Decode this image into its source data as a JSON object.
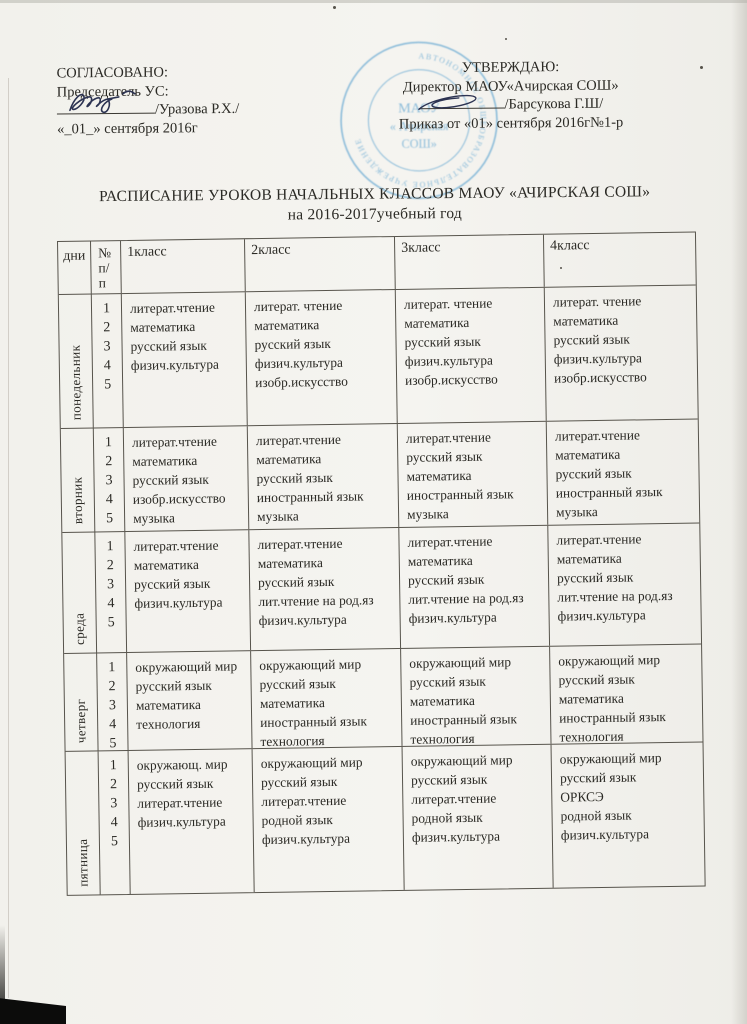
{
  "page": {
    "ink_color": "#2b2a25",
    "stamp_color": "#6fadd4",
    "signature_ink": "#2c3352"
  },
  "approval_left": {
    "heading": "СОГЛАСОВАНО:",
    "role": "Председатель УС:",
    "signature_name": "/Уразова Р.Х./",
    "date": "«_01_» сентября 2016г"
  },
  "approval_right": {
    "heading": "УТВЕРЖДАЮ:",
    "role": "Директор МАОУ«Ачирская СОШ»",
    "signature_name": "/Барсукова Г.Ш/",
    "order": "Приказ от «01» сентября 2016г№1-р"
  },
  "stamp": {
    "ring_text": "АВТОНОМНОЕ ОБЩЕОБРАЗОВАТЕЛЬНОЕ УЧРЕЖДЕНИЕ",
    "line1": "МАОУ",
    "line2": "« Ачирская",
    "line3": "СОШ»"
  },
  "title": {
    "line1": "РАСПИСАНИЕ УРОКОВ НАЧАЛЬНЫХ КЛАССОВ МАОУ «АЧИРСКАЯ СОШ»",
    "line2": "на 2016-2017учебный год"
  },
  "table": {
    "header": {
      "days": "дни",
      "num_lines": [
        "№",
        "п/",
        "п"
      ],
      "classes": [
        "1класс",
        "2класс",
        "3класс",
        "4класс"
      ]
    },
    "rows": [
      {
        "day": "понедельник",
        "periods": [
          "1",
          "2",
          "3",
          "4",
          "5"
        ],
        "classes": [
          [
            "литерат.чтение",
            "математика",
            "русский язык",
            "физич.культура"
          ],
          [
            "литерат. чтение",
            "математика",
            "русский язык",
            "физич.культура",
            "изобр.искусство"
          ],
          [
            "литерат. чтение",
            "математика",
            "русский язык",
            "физич.культура",
            "изобр.искусство"
          ],
          [
            "литерат. чтение",
            "математика",
            "русский язык",
            "физич.культура",
            "изобр.искусство"
          ]
        ]
      },
      {
        "day": "вторник",
        "periods": [
          "1",
          "2",
          "3",
          "4",
          "5"
        ],
        "classes": [
          [
            "литерат.чтение",
            "математика",
            "русский язык",
            "изобр.искусство",
            "музыка"
          ],
          [
            "литерат.чтение",
            "математика",
            "русский язык",
            "иностранный язык",
            "музыка"
          ],
          [
            "литерат.чтение",
            "русский язык",
            "математика",
            "иностранный язык",
            "музыка"
          ],
          [
            "литерат.чтение",
            "математика",
            "русский язык",
            "иностранный язык",
            "музыка"
          ]
        ]
      },
      {
        "day": "среда",
        "periods": [
          "1",
          "2",
          "3",
          "4",
          "5"
        ],
        "classes": [
          [
            "литерат.чтение",
            "математика",
            "русский язык",
            "физич.культура"
          ],
          [
            "литерат.чтение",
            "математика",
            "русский язык",
            "лит.чтение на род.яз",
            "физич.культура"
          ],
          [
            "литерат.чтение",
            "математика",
            "русский язык",
            "лит.чтение на род.яз",
            "физич.культура"
          ],
          [
            "литерат.чтение",
            "математика",
            "русский язык",
            "лит.чтение на род.яз",
            "физич.культура"
          ]
        ]
      },
      {
        "day": "четверг",
        "periods": [
          "1",
          "2",
          "3",
          "4",
          "5"
        ],
        "classes": [
          [
            "окружающий мир",
            "русский язык",
            "математика",
            "технология"
          ],
          [
            "окружающий мир",
            "русский язык",
            "математика",
            "иностранный язык",
            "технология"
          ],
          [
            "окружающий мир",
            "русский язык",
            "математика",
            "иностранный язык",
            "технология"
          ],
          [
            "окружающий мир",
            "русский язык",
            "математика",
            "иностранный язык",
            "технология"
          ]
        ]
      },
      {
        "day": "пятница",
        "periods": [
          "1",
          "2",
          "3",
          "4",
          "5"
        ],
        "classes": [
          [
            "окружающ. мир",
            "русский язык",
            "литерат.чтение",
            "физич.культура"
          ],
          [
            "окружающий мир",
            "русский язык",
            "литерат.чтение",
            "родной язык",
            "физич.культура"
          ],
          [
            "окружающий мир",
            "русский язык",
            "литерат.чтение",
            "родной язык",
            "физич.культура"
          ],
          [
            "окружающий мир",
            "русский язык",
            "ОРКСЭ",
            "родной язык",
            "физич.культура"
          ]
        ]
      }
    ]
  }
}
